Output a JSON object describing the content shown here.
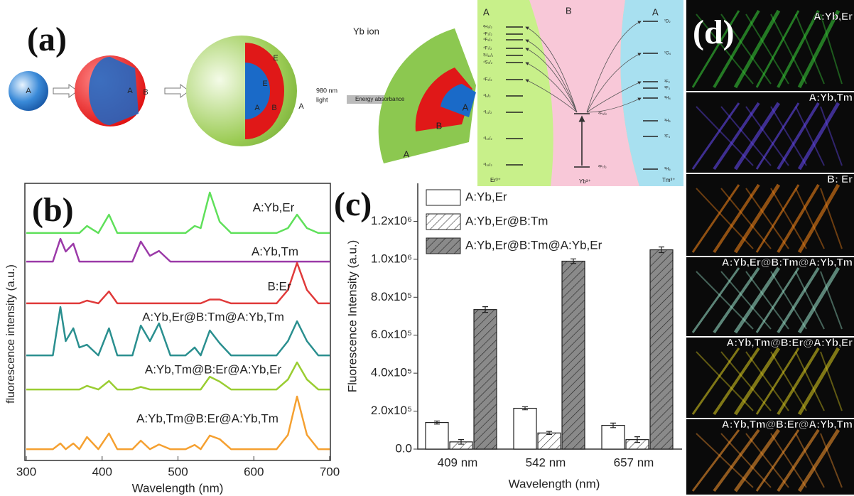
{
  "panel_a": {
    "label": "(a)",
    "core": [
      "A"
    ],
    "core_shell": [
      "A",
      "B"
    ],
    "core_shell_shell": [
      "A",
      "B",
      "A"
    ],
    "energy": [
      "E",
      "E"
    ],
    "light": [
      "980 nm",
      "light"
    ],
    "energy_absorbance": "Energy absorbance",
    "yb_ion": "Yb ion",
    "wedge": [
      "A",
      "B",
      "A"
    ]
  },
  "diagram": {
    "regions": [
      "A",
      "B",
      "A"
    ],
    "ions": [
      "Er³⁺",
      "Yb³⁺",
      "Tm³⁺"
    ],
    "er_levels": [
      "²H₉/₂",
      "⁴F₃/₂",
      "⁴F₅/₂",
      "⁴F₇/₂",
      "²H₁₁/₂",
      "⁴S₃/₂",
      "⁴F₉/₂",
      "⁴I₉/₂",
      "⁴I₁₁/₂",
      "⁴I₁₃/₂",
      "⁴I₁₅/₂"
    ],
    "yb_levels": [
      "²F₅/₂",
      "²F₇/₂"
    ],
    "tm_levels": [
      "¹D₂",
      "¹G₄",
      "³F₂",
      "³F₃",
      "³H₄",
      "³H₅",
      "³F₄",
      "³H₆"
    ]
  },
  "chart_data": [
    {
      "type": "line",
      "panel_label": "(b)",
      "xlabel": "Wavelength (nm)",
      "ylabel": "fluorescence intensity (a.u.)",
      "x": [
        300,
        320,
        335,
        345,
        352,
        362,
        370,
        380,
        395,
        409,
        420,
        440,
        451,
        463,
        475,
        490,
        510,
        522,
        530,
        542,
        555,
        570,
        600,
        630,
        645,
        657,
        670,
        685,
        700
      ],
      "xlim": [
        300,
        700
      ],
      "xticks": [
        300,
        400,
        500,
        600,
        700
      ],
      "ylim": [
        0,
        13
      ],
      "series": [
        {
          "name": "A:Yb,Er",
          "color": "#5fe05a",
          "values": [
            10.67,
            10.67,
            10.67,
            10.67,
            10.67,
            10.67,
            10.67,
            11.0,
            10.67,
            11.53,
            10.67,
            10.67,
            10.67,
            10.67,
            10.67,
            10.67,
            10.67,
            11.0,
            10.9,
            12.57,
            11.2,
            10.67,
            10.67,
            10.67,
            10.9,
            11.53,
            10.9,
            10.67,
            10.67
          ]
        },
        {
          "name": "A:Yb,Tm",
          "color": "#9b3aa8",
          "values": [
            9.33,
            9.33,
            9.33,
            10.4,
            9.8,
            10.17,
            9.33,
            9.33,
            9.33,
            9.33,
            9.33,
            9.33,
            10.27,
            9.6,
            9.83,
            9.33,
            9.33,
            9.33,
            9.33,
            9.33,
            9.33,
            9.33,
            9.33,
            9.33,
            9.33,
            9.33,
            9.33,
            9.33,
            9.33
          ]
        },
        {
          "name": "B:Er",
          "color": "#e03a3a",
          "values": [
            7.37,
            7.37,
            7.37,
            7.37,
            7.37,
            7.37,
            7.37,
            7.5,
            7.37,
            7.93,
            7.37,
            7.37,
            7.37,
            7.37,
            7.37,
            7.37,
            7.37,
            7.37,
            7.37,
            7.55,
            7.55,
            7.37,
            7.37,
            7.37,
            8.0,
            9.27,
            8.0,
            7.37,
            7.37
          ]
        },
        {
          "name": "A:Yb,Er@B:Tm@A:Yb,Tm",
          "color": "#2a8f8f",
          "values": [
            4.93,
            4.93,
            4.93,
            7.2,
            5.6,
            6.2,
            5.3,
            5.43,
            4.93,
            6.2,
            4.93,
            4.93,
            6.33,
            5.6,
            6.43,
            4.93,
            4.93,
            5.3,
            4.93,
            6.1,
            5.5,
            4.93,
            4.93,
            4.93,
            5.6,
            6.53,
            5.6,
            4.93,
            4.93
          ]
        },
        {
          "name": "A:Yb,Tm@B:Er@A:Yb,Er",
          "color": "#9acd32",
          "values": [
            3.33,
            3.33,
            3.33,
            3.33,
            3.33,
            3.33,
            3.33,
            3.5,
            3.33,
            3.73,
            3.33,
            3.33,
            3.45,
            3.33,
            3.33,
            3.33,
            3.33,
            3.33,
            3.33,
            3.93,
            3.7,
            3.33,
            3.33,
            3.33,
            3.8,
            4.6,
            3.8,
            3.33,
            3.33
          ]
        },
        {
          "name": "A:Yb,Tm@B:Er@A:Yb,Tm",
          "color": "#f5a030",
          "values": [
            0.53,
            0.53,
            0.53,
            0.8,
            0.53,
            0.8,
            0.53,
            1.1,
            0.53,
            1.27,
            0.53,
            0.53,
            0.93,
            0.53,
            0.75,
            0.53,
            0.53,
            0.73,
            0.53,
            1.17,
            1.0,
            0.53,
            0.53,
            0.53,
            1.2,
            3.0,
            1.2,
            0.53,
            0.53
          ]
        }
      ]
    },
    {
      "type": "bar",
      "panel_label": "(c)",
      "xlabel": "Wavelength (nm)",
      "ylabel": "Fluorescence Intensity (a.u.)",
      "categories": [
        "409 nm",
        "542 nm",
        "657 nm"
      ],
      "ylim": [
        0,
        1400000
      ],
      "yticks": [
        {
          "value": 0,
          "label": "0.0"
        },
        {
          "value": 200000,
          "label": "2.0x10⁵"
        },
        {
          "value": 400000,
          "label": "4.0x10⁵"
        },
        {
          "value": 600000,
          "label": "6.0x10⁵"
        },
        {
          "value": 800000,
          "label": "8.0x10⁵"
        },
        {
          "value": 1000000,
          "label": "1.0x10⁶"
        },
        {
          "value": 1200000,
          "label": "1.2x10⁶"
        }
      ],
      "series": [
        {
          "name": "A:Yb,Er",
          "color": "#ffffff",
          "values": [
            140000,
            215000,
            125000
          ],
          "errors": [
            8000,
            8000,
            12000
          ]
        },
        {
          "name": "A:Yb,Er@B:Tm",
          "color": "#ffffff",
          "hatch": true,
          "values": [
            38000,
            85000,
            50000
          ],
          "errors": [
            12000,
            8000,
            15000
          ]
        },
        {
          "name": "A:Yb,Er@B:Tm@A:Yb,Er",
          "color": "#8a8a8a",
          "hatch": true,
          "values": [
            735000,
            990000,
            1050000
          ],
          "errors": [
            15000,
            12000,
            15000
          ]
        }
      ]
    }
  ],
  "panel_d": {
    "label": "(d)",
    "photos": [
      "A:Yb,Er",
      "A:Yb,Tm",
      "B: Er",
      "A:Yb,Er@B:Tm@A:Yb,Tm",
      "A:Yb,Tm@B:Er@A:Yb,Er",
      "A:Yb,Tm@B:Er@A:Yb,Tm"
    ]
  }
}
